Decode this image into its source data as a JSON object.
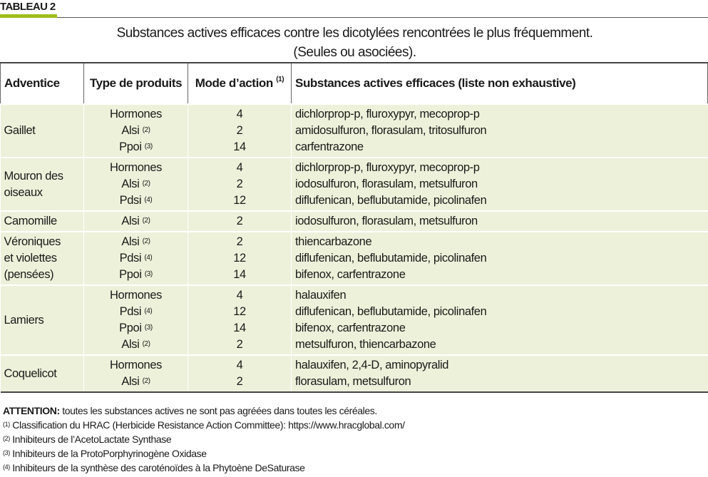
{
  "tag": "TABLEAU 2",
  "title_line1": "Substances actives efficaces contre les dicotylées rencontrées le plus fréquemment.",
  "title_line2": "(Seules ou asociées).",
  "headers": [
    "Adventice",
    "Type de produits",
    "Mode d’action",
    "Substances actives efficaces (liste non exhaustive)"
  ],
  "header_note": "(1)",
  "rows": [
    {
      "weed": [
        "Gaillet"
      ],
      "items": [
        [
          "Hormones",
          "",
          "4",
          "dichlorprop-p, fluroxypyr, mecoprop-p"
        ],
        [
          "Alsi",
          "(2)",
          "2",
          "amidosulfuron, florasulam, tritosulfuron"
        ],
        [
          "Ppoi",
          "(3)",
          "14",
          "carfentrazone"
        ]
      ]
    },
    {
      "weed": [
        "Mouron des",
        "oiseaux"
      ],
      "items": [
        [
          "Hormones",
          "",
          "4",
          "dichlorprop-p, fluroxypyr, mecoprop-p"
        ],
        [
          "Alsi",
          "(2)",
          "2",
          "iodosulfuron, florasulam, metsulfuron"
        ],
        [
          "Pdsi",
          "(4)",
          "12",
          "diflufenican, beflubutamide, picolinafen"
        ]
      ]
    },
    {
      "weed": [
        "Camomille"
      ],
      "items": [
        [
          "Alsi",
          "(2)",
          "2",
          "iodosulfuron, florasulam, metsulfuron"
        ]
      ]
    },
    {
      "weed": [
        "Véroniques",
        "et violettes",
        "(pensées)"
      ],
      "items": [
        [
          "Alsi",
          "(2)",
          "2",
          "thiencarbazone"
        ],
        [
          "Pdsi",
          "(4)",
          "12",
          "diflufenican, beflubutamide, picolinafen"
        ],
        [
          "Ppoi",
          "(3)",
          "14",
          "bifenox, carfentrazone"
        ]
      ]
    },
    {
      "weed": [
        "Lamiers"
      ],
      "items": [
        [
          "Hormones",
          "",
          "4",
          "halauxifen"
        ],
        [
          "Pdsi",
          "(4)",
          "12",
          "diflufenican, beflubutamide, picolinafen"
        ],
        [
          "Ppoi",
          "(3)",
          "14",
          "bifenox, carfentrazone"
        ],
        [
          "Alsi",
          "(2)",
          "2",
          "metsulfuron, thiencarbazone"
        ]
      ]
    },
    {
      "weed": [
        "Coquelicot"
      ],
      "items": [
        [
          "Hormones",
          "",
          "4",
          "halauxifen, 2,4-D, aminopyralid"
        ],
        [
          "Alsi",
          "(2)",
          "2",
          "florasulam, metsulfuron"
        ]
      ]
    }
  ],
  "notes": {
    "attention_label": "ATTENTION:",
    "attention_text": " toutes les substances actives ne sont pas agréées dans toutes les céréales.",
    "footnotes": [
      [
        "(1)",
        " Classification du HRAC (Herbicide Resistance Action Committee): https://www.hracglobal.com/"
      ],
      [
        "(2)",
        " Inhibiteurs de l’AcetoLactate Synthase"
      ],
      [
        "(3)",
        " Inhibiteurs de la ProtoPorphyrinogène Oxidase"
      ],
      [
        "(4)",
        " Inhibiteurs de la synthèse des caroténoïdes à la Phytoène DeSaturase"
      ]
    ]
  }
}
